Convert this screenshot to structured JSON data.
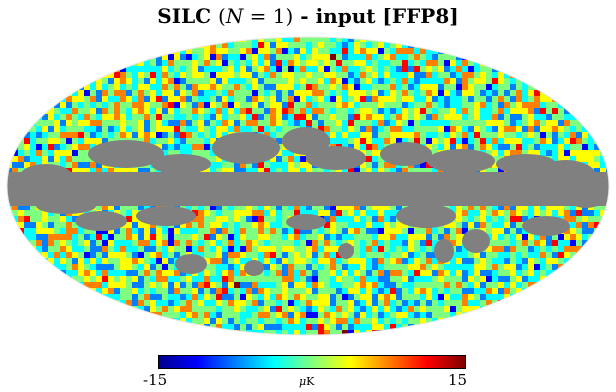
{
  "title": {
    "prefix": "SILC",
    "open_paren": "(",
    "math_var": "N",
    "math_eq": " = 1",
    "close_paren": ")",
    "suffix": " - input [FFP8]"
  },
  "map": {
    "projection": "mollweide",
    "mask_color": "#808080",
    "colormap": [
      "#00008f",
      "#0000ff",
      "#007fff",
      "#00ffff",
      "#7fff7f",
      "#ffff00",
      "#ff7f00",
      "#ff0000",
      "#7f0000"
    ],
    "masked_region": "galactic-plane"
  },
  "colorbar": {
    "min_label": "-15",
    "max_label": "15",
    "unit_prefix": "μ",
    "unit": "K",
    "range": [
      -15,
      15
    ]
  }
}
